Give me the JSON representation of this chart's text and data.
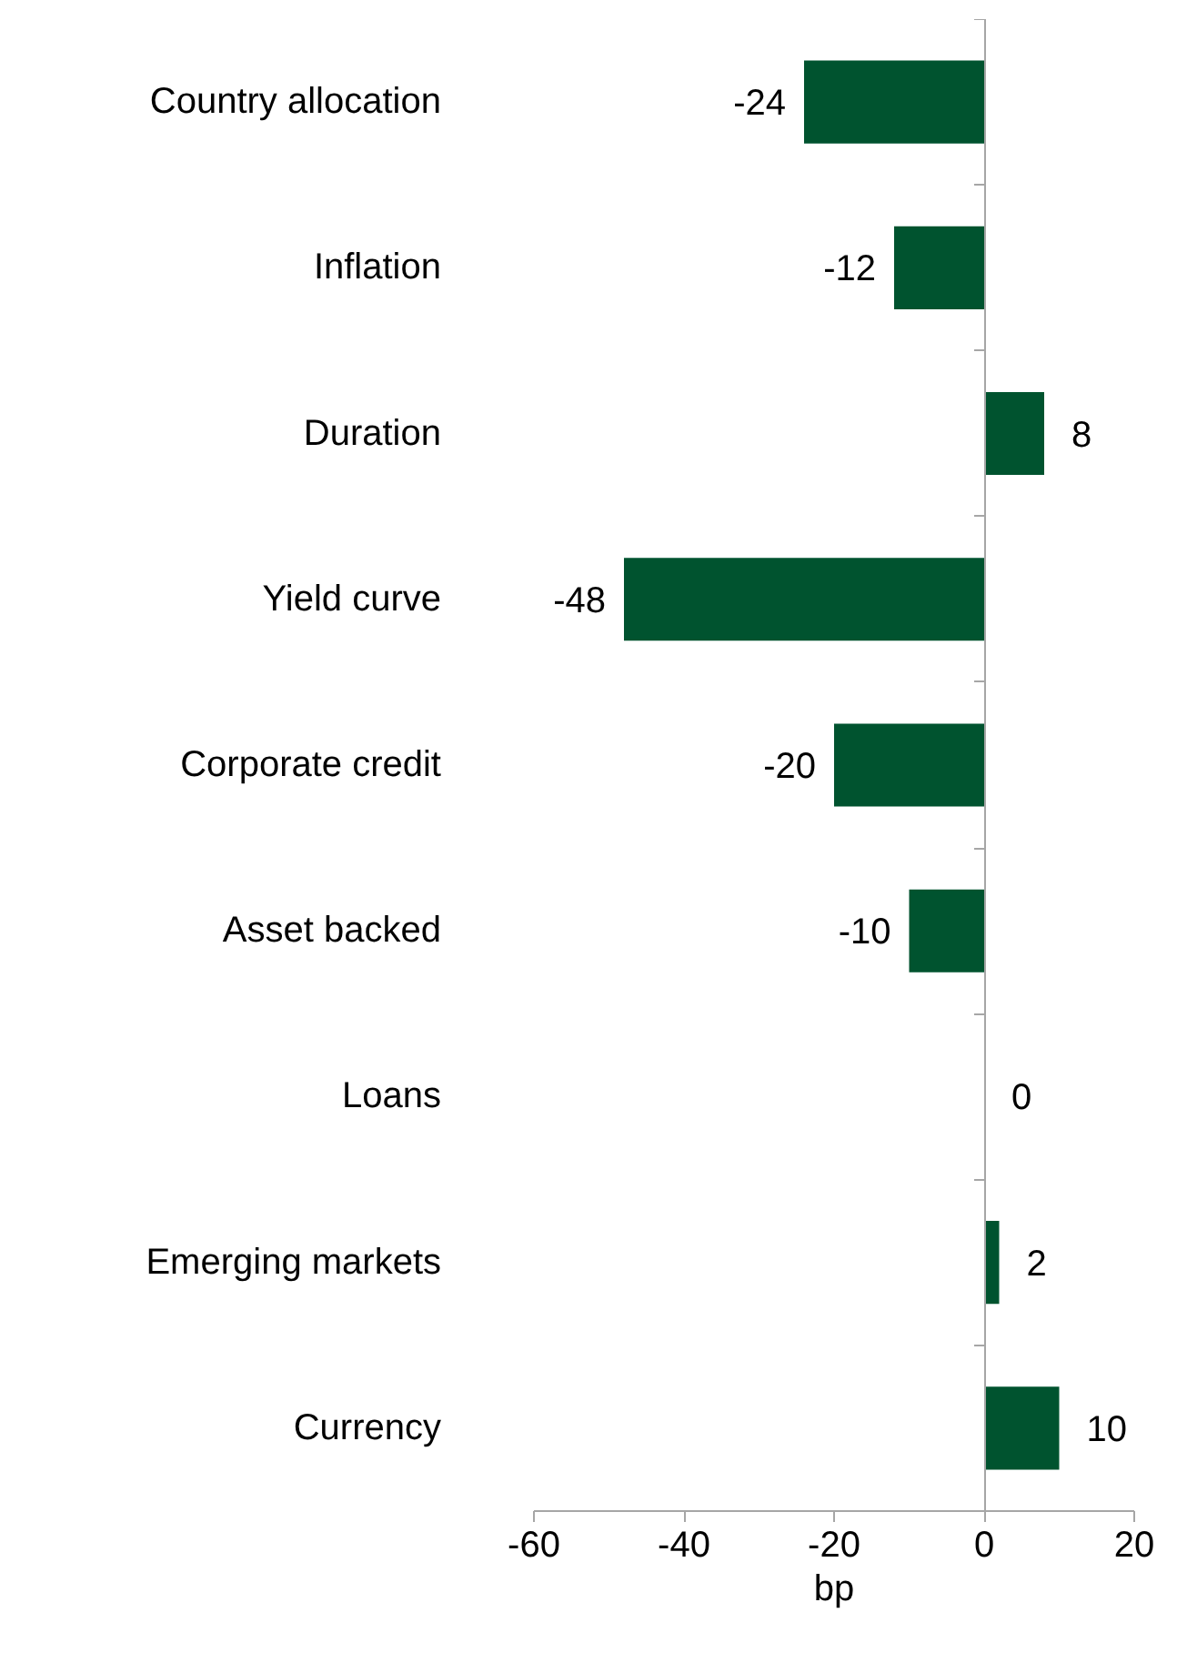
{
  "chart_data": {
    "type": "bar",
    "orientation": "horizontal",
    "xlabel": "bp",
    "categories": [
      "Country allocation",
      "Inflation",
      "Duration",
      "Yield curve",
      "Corporate credit",
      "Asset backed",
      "Loans",
      "Emerging markets",
      "Currency"
    ],
    "values": [
      -24,
      -12,
      8,
      -48,
      -20,
      -10,
      0,
      2,
      10
    ],
    "color": "#00532f",
    "data_labels": true,
    "xlim": [
      -60,
      20
    ],
    "xticks": [
      -60,
      -40,
      -20,
      0,
      20
    ]
  }
}
